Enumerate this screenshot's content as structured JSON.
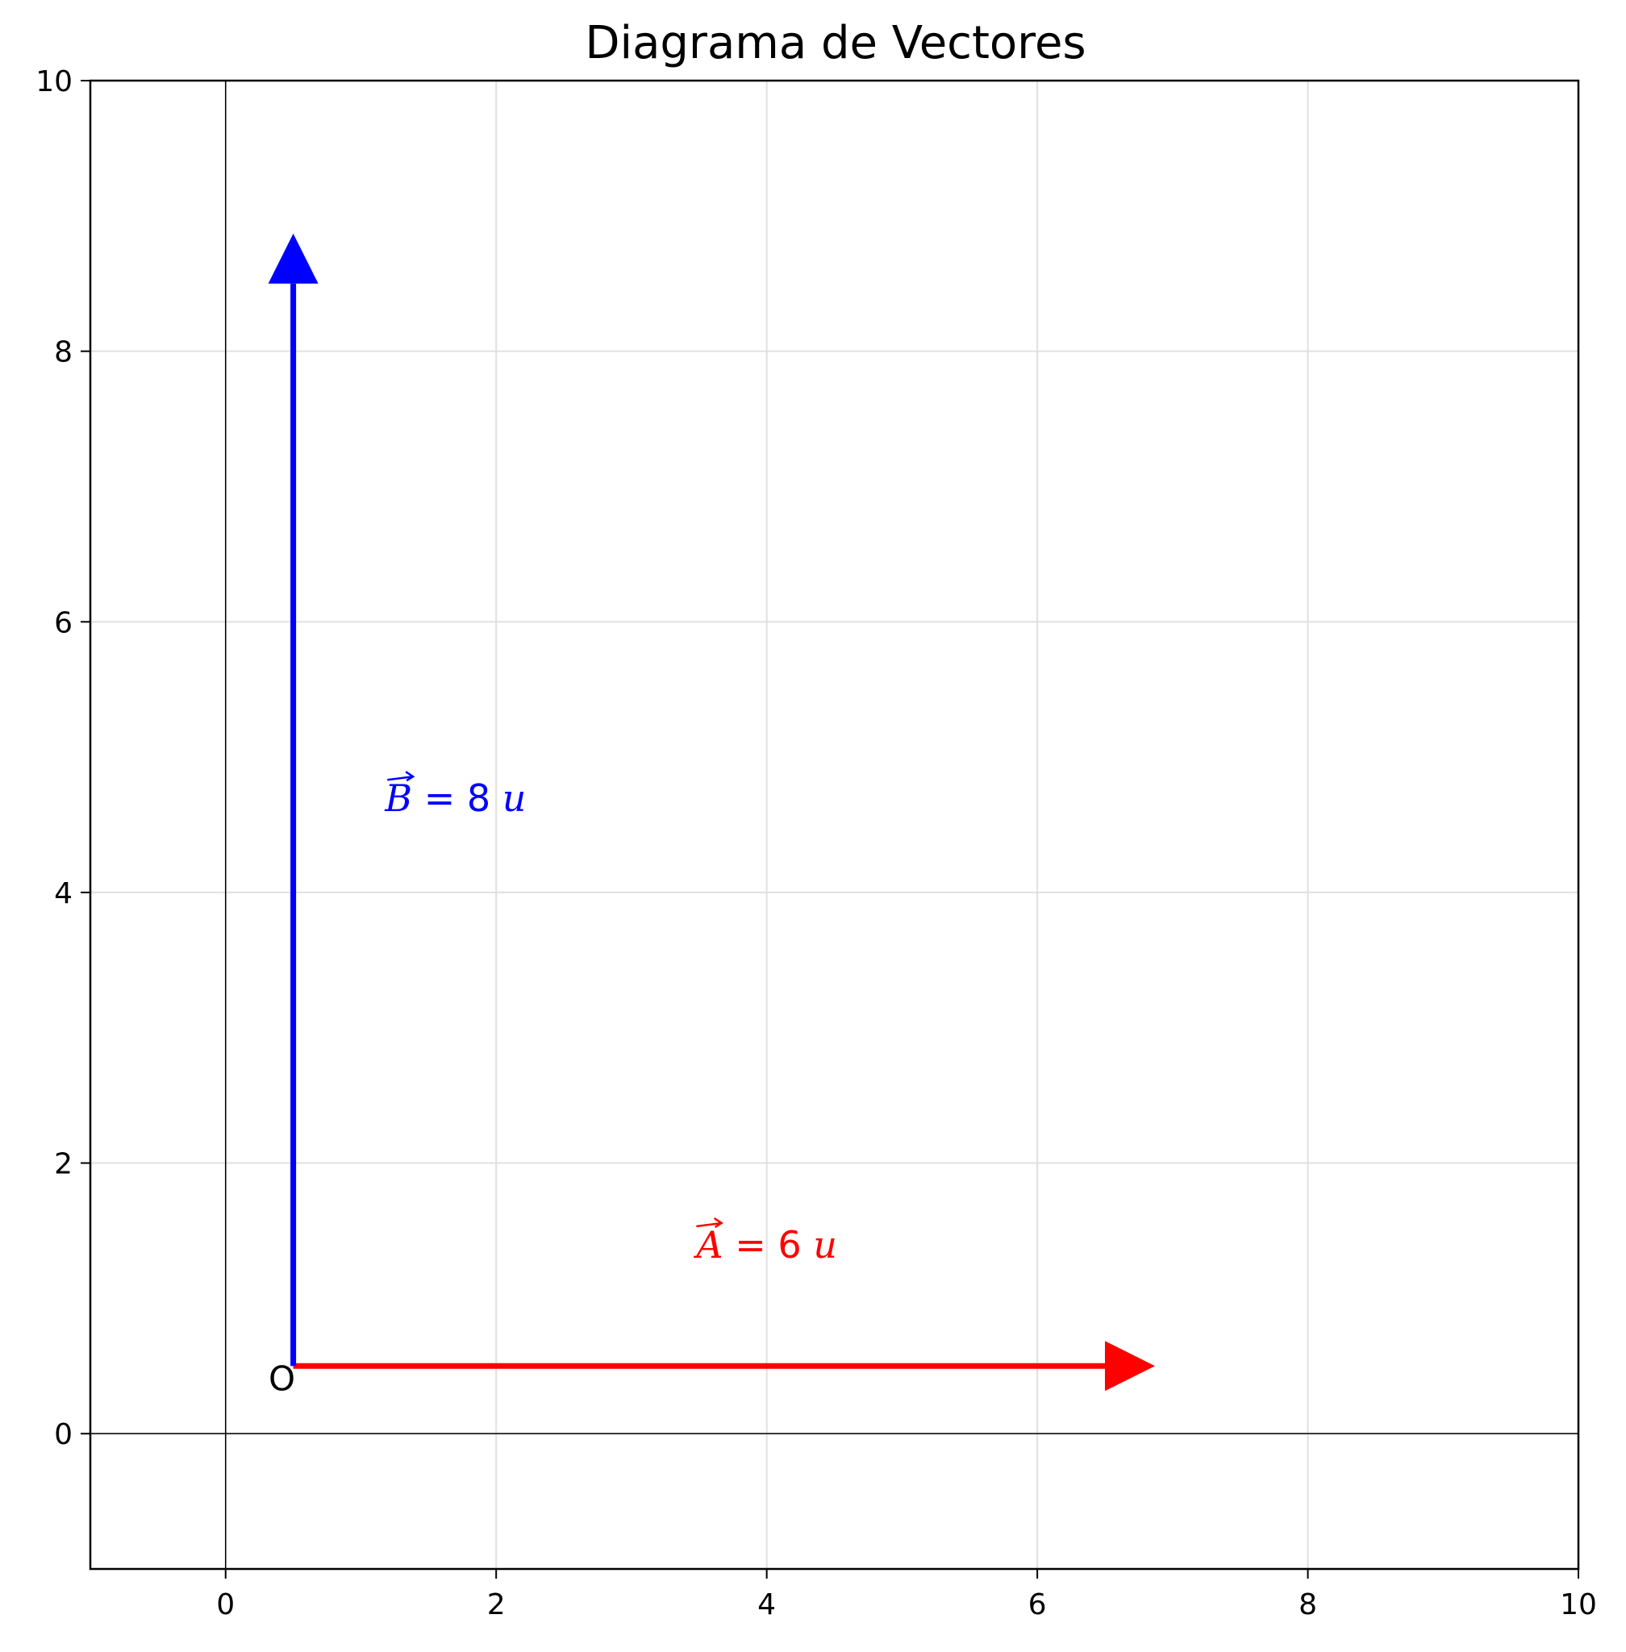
{
  "chart_data": {
    "type": "vector-diagram",
    "title": "Diagrama de Vectores",
    "xlim": [
      -1,
      10
    ],
    "ylim": [
      -1,
      10
    ],
    "x_ticks": [
      0,
      2,
      4,
      6,
      8,
      10
    ],
    "y_ticks": [
      0,
      2,
      4,
      6,
      8,
      10
    ],
    "grid": true,
    "origin_label": "O",
    "origin": [
      0.5,
      0.5
    ],
    "vectors": [
      {
        "name": "A",
        "start": [
          0.5,
          0.5
        ],
        "end": [
          6.5,
          0.5
        ],
        "color": "#ff0000",
        "label_symbol": "A",
        "label_value": "6",
        "label_unit": "u",
        "label_pos": [
          4.0,
          1.3
        ]
      },
      {
        "name": "B",
        "start": [
          0.5,
          0.5
        ],
        "end": [
          0.5,
          8.5
        ],
        "color": "#0000ff",
        "label_symbol": "B",
        "label_value": "8",
        "label_unit": "u",
        "label_pos": [
          1.7,
          4.6
        ]
      }
    ]
  }
}
